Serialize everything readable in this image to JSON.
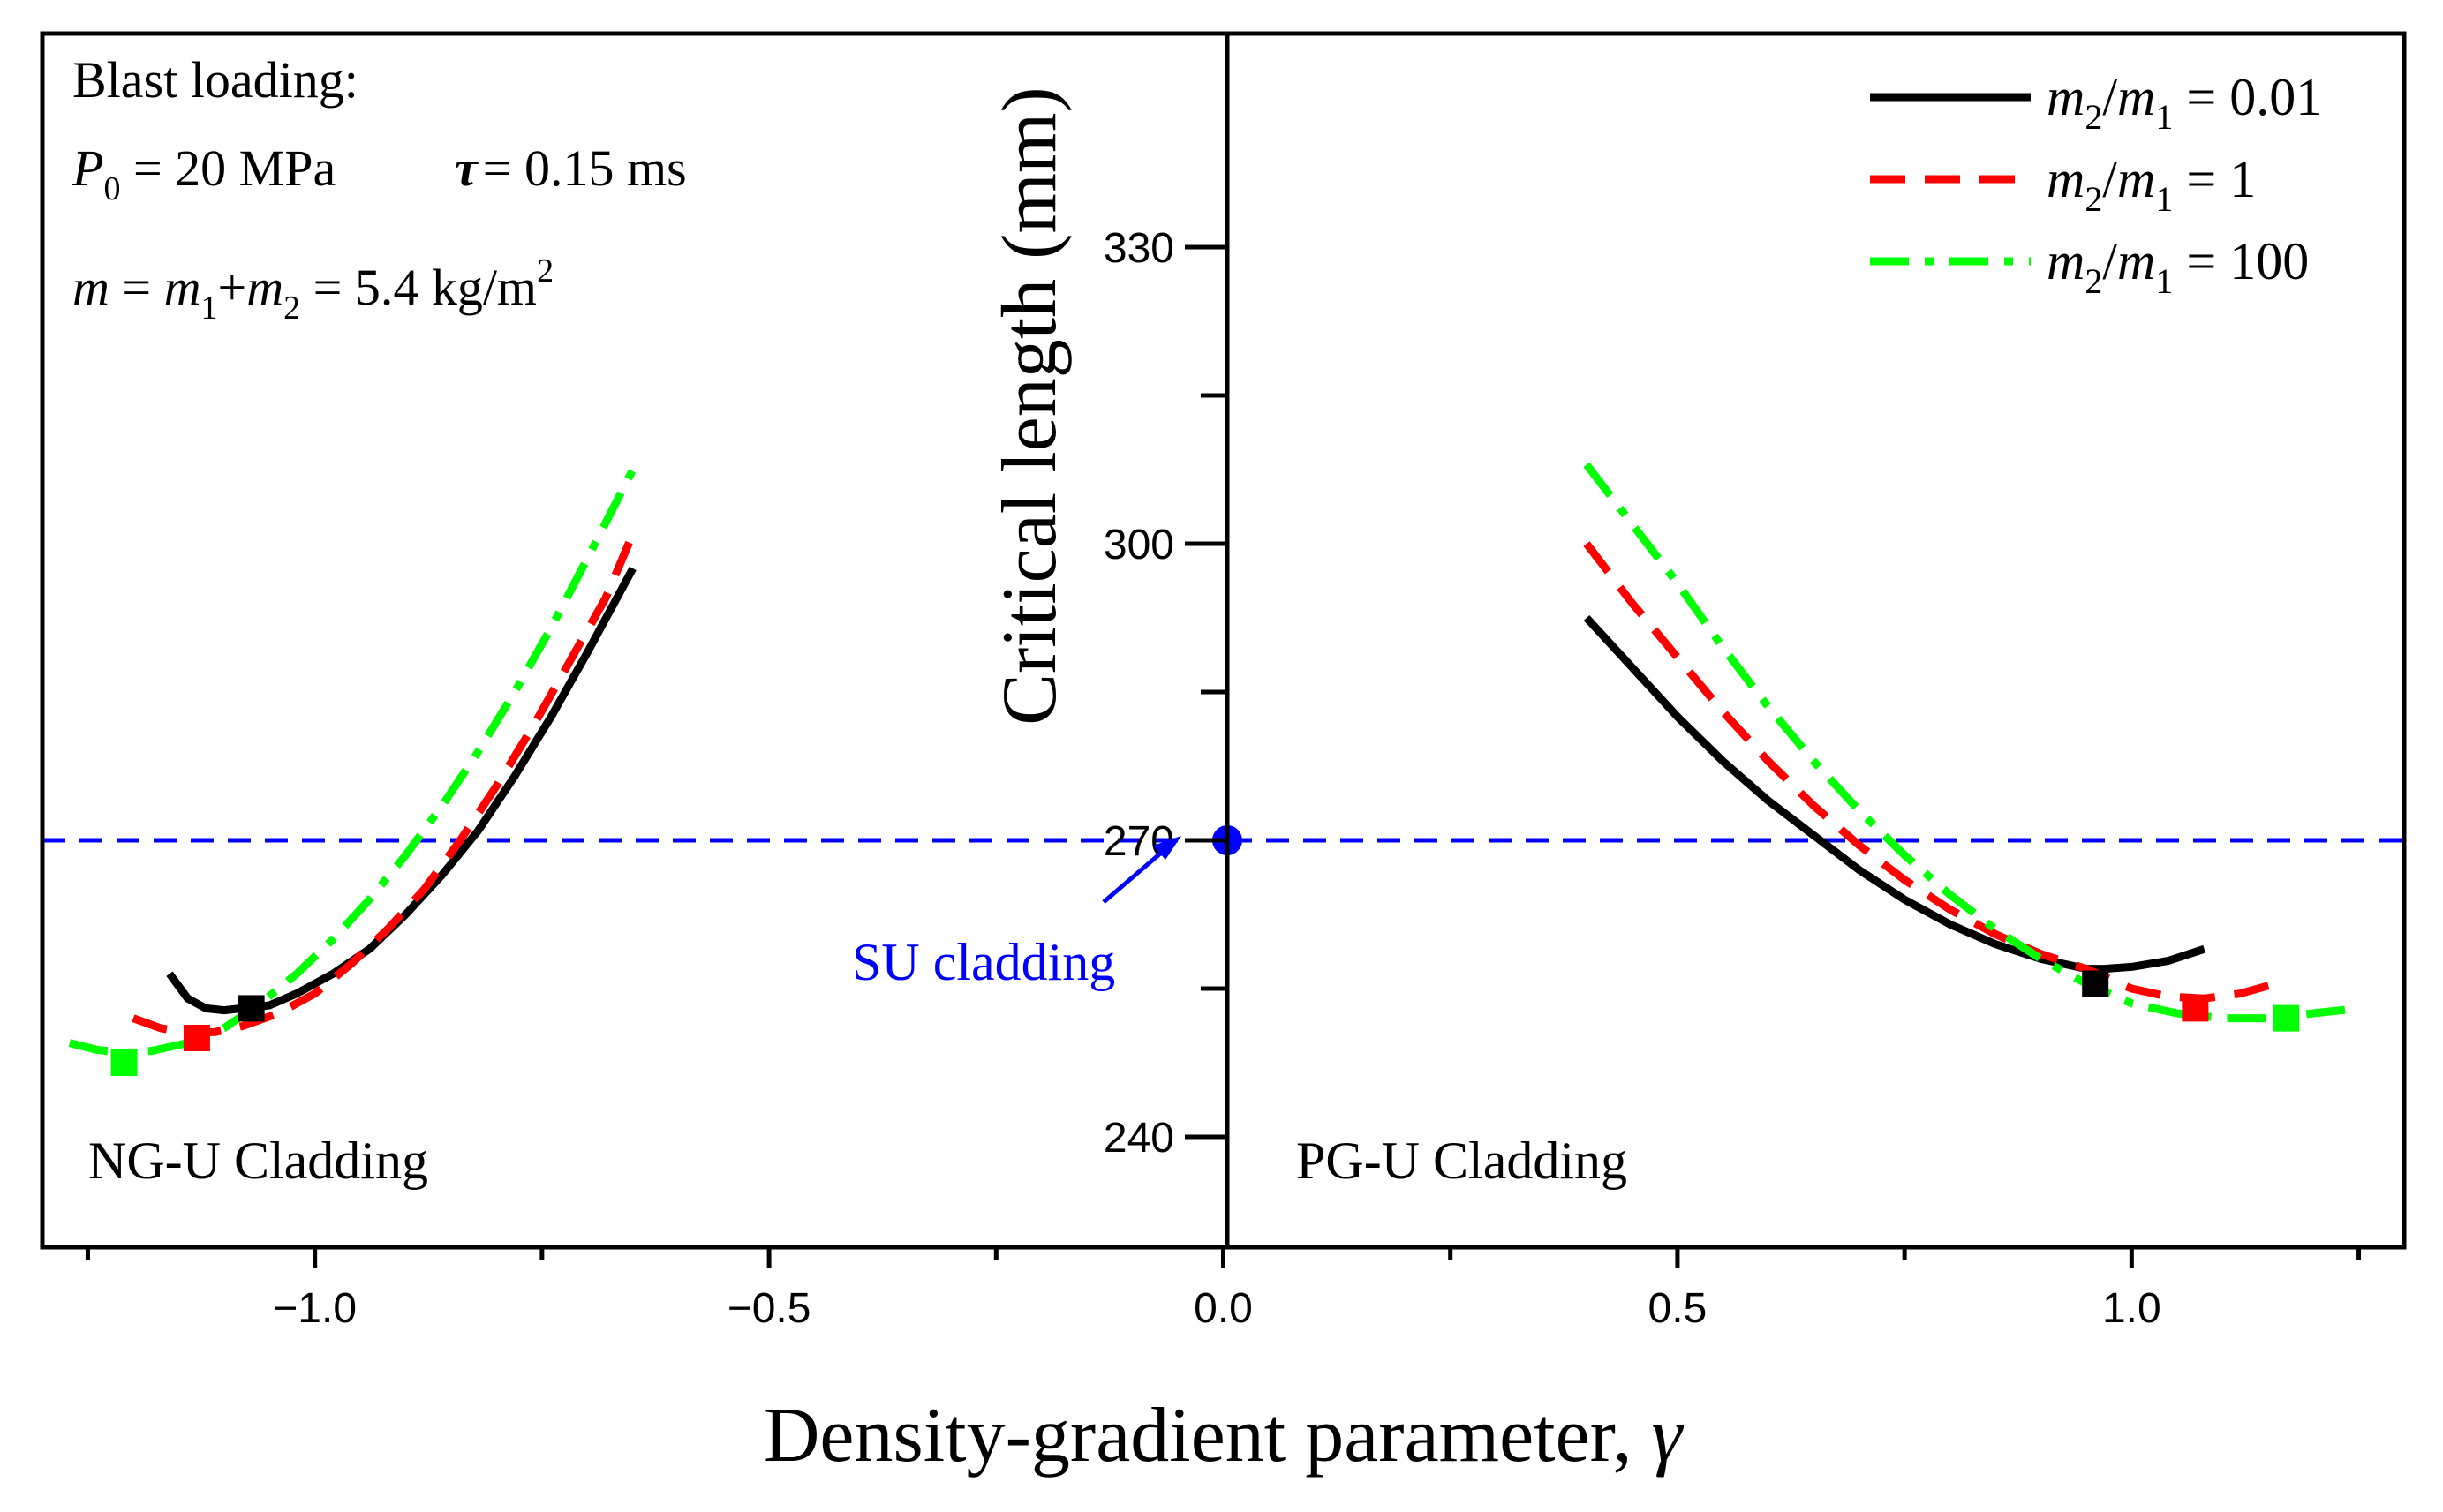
{
  "chart_data": {
    "type": "line",
    "xlabel": "Density-gradient parameter, ",
    "xlabel_symbol": "γ",
    "ylabel": "Critical length (mm)",
    "xlim": [
      -1.3,
      1.3
    ],
    "ylim": [
      230,
      340
    ],
    "x_ticks": [
      -1.0,
      -0.5,
      0.0,
      0.5,
      1.0
    ],
    "x_tick_labels": [
      "−1.0",
      "−0.5",
      "0.0",
      "0.5",
      "1.0"
    ],
    "y_ticks": [
      240,
      270,
      300,
      330
    ],
    "y_tick_labels": [
      "240",
      "270",
      "300",
      "330"
    ],
    "grid": false,
    "legend_position": "top-right",
    "annotations": {
      "loading_title": "Blast loading:",
      "pressure_symbol": "P",
      "pressure_sub": "0",
      "pressure_value": " = 20 MPa",
      "tau_symbol": "τ",
      "tau_value": "= 0.15 ms",
      "mass_symbol": "m",
      "mass_eq": " = ",
      "mass_m1": "m",
      "mass_m1_sub": "1",
      "mass_plus": "+",
      "mass_m2": "m",
      "mass_m2_sub": "2",
      "mass_value": " = 5.4 kg/m",
      "mass_exp": "2",
      "left_region": "NG-U Cladding",
      "right_region": "PG-U Cladding",
      "reference": "SU cladding"
    },
    "reference_line": {
      "y": 270,
      "color": "#0000ff"
    },
    "series": [
      {
        "name": "m2/m1 = 0.01",
        "legend_m": "m",
        "legend_num_sub": "2",
        "legend_den_sub": "1",
        "legend_value": " = 0.01",
        "color": "#000000",
        "dash": "solid",
        "left": {
          "x": [
            -1.16,
            -1.14,
            -1.12,
            -1.1,
            -1.08,
            -1.05,
            -1.02,
            -0.98,
            -0.94,
            -0.9,
            -0.86,
            -0.82,
            -0.78,
            -0.74,
            -0.7,
            -0.65
          ],
          "y": [
            256.5,
            254.0,
            253.0,
            252.8,
            253.0,
            253.3,
            254.5,
            256.5,
            259.0,
            262.5,
            266.5,
            271.0,
            276.5,
            282.5,
            289.0,
            297.5
          ]
        },
        "right": {
          "x": [
            0.4,
            0.45,
            0.5,
            0.55,
            0.6,
            0.65,
            0.7,
            0.75,
            0.8,
            0.85,
            0.9,
            0.95,
            0.97,
            1.0,
            1.04,
            1.08
          ],
          "y": [
            292.5,
            287.5,
            282.5,
            278.0,
            274.0,
            270.5,
            267.0,
            264.0,
            261.5,
            259.5,
            258.0,
            257.0,
            257.0,
            257.2,
            257.8,
            259.0
          ]
        },
        "marker": [
          {
            "x": -1.07,
            "y": 253.0
          },
          {
            "x": 0.96,
            "y": 255.5
          }
        ]
      },
      {
        "name": "m2/m1 = 1",
        "legend_m": "m",
        "legend_num_sub": "2",
        "legend_den_sub": "1",
        "legend_value": " = 1",
        "color": "#ff0000",
        "dash": "dash",
        "left": {
          "x": [
            -1.2,
            -1.17,
            -1.14,
            -1.11,
            -1.08,
            -1.04,
            -1.0,
            -0.96,
            -0.92,
            -0.88,
            -0.84,
            -0.8,
            -0.76,
            -0.72,
            -0.68,
            -0.65
          ],
          "y": [
            252.0,
            251.0,
            250.5,
            250.6,
            251.2,
            252.5,
            254.5,
            257.5,
            261.0,
            265.0,
            270.0,
            275.5,
            281.5,
            288.0,
            294.5,
            301.0
          ]
        },
        "right": {
          "x": [
            0.4,
            0.45,
            0.5,
            0.55,
            0.6,
            0.65,
            0.7,
            0.75,
            0.8,
            0.85,
            0.9,
            0.95,
            1.0,
            1.04,
            1.08,
            1.12,
            1.17
          ],
          "y": [
            300.0,
            294.0,
            288.5,
            283.0,
            278.0,
            273.5,
            269.5,
            266.0,
            263.0,
            260.5,
            258.5,
            257.0,
            255.0,
            254.2,
            254.0,
            254.5,
            255.8
          ]
        },
        "marker": [
          {
            "x": -1.13,
            "y": 250.0
          },
          {
            "x": 1.07,
            "y": 253.0
          }
        ]
      },
      {
        "name": "m2/m1 = 100",
        "legend_m": "m",
        "legend_num_sub": "2",
        "legend_den_sub": "1",
        "legend_value": " = 100",
        "color": "#00ff00",
        "dash": "dashdot",
        "left": {
          "x": [
            -1.27,
            -1.24,
            -1.21,
            -1.18,
            -1.14,
            -1.1,
            -1.06,
            -1.02,
            -0.98,
            -0.94,
            -0.9,
            -0.86,
            -0.82,
            -0.78,
            -0.74,
            -0.7,
            -0.65
          ],
          "y": [
            249.5,
            248.8,
            248.5,
            248.7,
            249.5,
            251.0,
            253.5,
            256.5,
            260.0,
            264.0,
            268.5,
            273.5,
            279.0,
            285.0,
            291.5,
            298.5,
            307.5
          ]
        },
        "right": {
          "x": [
            0.4,
            0.45,
            0.5,
            0.55,
            0.6,
            0.65,
            0.7,
            0.75,
            0.8,
            0.85,
            0.9,
            0.95,
            1.0,
            1.05,
            1.1,
            1.15,
            1.2,
            1.25
          ],
          "y": [
            308.0,
            302.0,
            296.0,
            289.5,
            283.5,
            278.0,
            273.0,
            268.5,
            264.5,
            261.0,
            258.0,
            255.5,
            253.5,
            252.5,
            252.0,
            252.0,
            252.5,
            253.0
          ]
        },
        "marker": [
          {
            "x": -1.21,
            "y": 247.5
          },
          {
            "x": 1.17,
            "y": 252.0
          }
        ]
      }
    ]
  }
}
